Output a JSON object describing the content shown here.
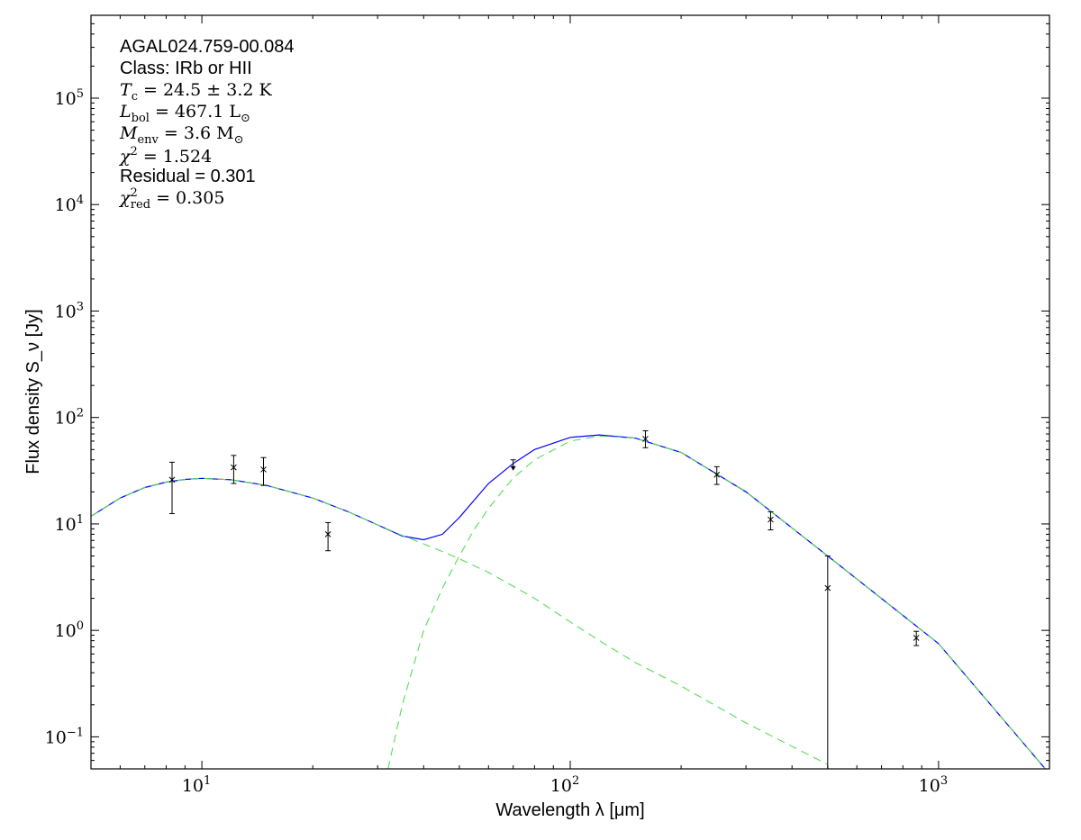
{
  "chart_data": {
    "type": "line",
    "title": "",
    "xlabel": "Wavelength λ [μm]",
    "ylabel": "Flux density S_ν [Jy]",
    "x_scale": "log",
    "y_scale": "log",
    "xlim": [
      5,
      2000
    ],
    "ylim": [
      0.05,
      600000
    ],
    "x_ticks": [
      {
        "value": 10,
        "base": "10",
        "exp": "1"
      },
      {
        "value": 100,
        "base": "10",
        "exp": "2"
      },
      {
        "value": 1000,
        "base": "10",
        "exp": "3"
      }
    ],
    "y_ticks": [
      {
        "value": 0.1,
        "base": "10",
        "exp": "−1"
      },
      {
        "value": 1,
        "base": "10",
        "exp": "0"
      },
      {
        "value": 10,
        "base": "10",
        "exp": "1"
      },
      {
        "value": 100,
        "base": "10",
        "exp": "2"
      },
      {
        "value": 1000,
        "base": "10",
        "exp": "3"
      },
      {
        "value": 10000,
        "base": "10",
        "exp": "4"
      },
      {
        "value": 100000,
        "base": "10",
        "exp": "5"
      }
    ],
    "grid": false,
    "annotations": {
      "source": "AGAL024.759-00.084",
      "class": "Class: IRb or HII",
      "tc": {
        "sym": "T",
        "sub": "c",
        "rest": " = 24.5 ± 3.2 K"
      },
      "lbol": {
        "sym": "L",
        "sub": "bol",
        "rest": " = 467.1 L",
        "sub2": "⊙"
      },
      "menv": {
        "sym": "M",
        "sub": "env",
        "rest": " = 3.6 M",
        "sub2": "⊙"
      },
      "chi2": {
        "sym": "χ",
        "sup": "2",
        "rest": " = 1.524"
      },
      "residual": "Residual = 0.301",
      "chi2red": {
        "sym": "χ",
        "sup": "2",
        "sub": "red",
        "rest": " = 0.305"
      }
    },
    "series": [
      {
        "kind": "total_model",
        "color": "#0000ff",
        "style": "solid",
        "x": [
          5,
          6,
          7,
          8,
          9,
          10,
          12,
          15,
          20,
          25,
          30,
          35,
          40,
          45,
          50,
          60,
          70,
          80,
          100,
          120,
          150,
          200,
          300,
          500,
          1000,
          2000
        ],
        "y": [
          11.8,
          17.5,
          22,
          24.7,
          26.2,
          26.8,
          26,
          23,
          17.5,
          13,
          9.8,
          7.7,
          7.1,
          8,
          11.5,
          24,
          37,
          50,
          65,
          68.5,
          64,
          47,
          20,
          5,
          0.75,
          0.045
        ]
      },
      {
        "kind": "warm_component",
        "color": "#55dd55",
        "style": "dashed",
        "x": [
          5,
          6,
          7,
          8,
          9,
          10,
          12,
          15,
          20,
          25,
          30,
          35,
          40,
          45,
          50,
          60,
          70,
          80,
          100,
          120,
          150,
          200,
          300,
          500
        ],
        "y": [
          11.8,
          17.5,
          22,
          24.7,
          26.2,
          26.8,
          26,
          23,
          17.5,
          13,
          9.8,
          7.8,
          6.5,
          5.5,
          4.7,
          3.5,
          2.6,
          2.0,
          1.2,
          0.8,
          0.5,
          0.3,
          0.135,
          0.055
        ]
      },
      {
        "kind": "cold_component",
        "color": "#55dd55",
        "style": "dashed",
        "x": [
          32,
          35,
          40,
          45,
          50,
          55,
          60,
          70,
          80,
          100,
          120,
          150,
          200,
          300,
          500,
          1000,
          2000
        ],
        "y": [
          0.05,
          0.2,
          1.0,
          2.5,
          5.0,
          9.0,
          14,
          27,
          40,
          60,
          67,
          64,
          47,
          20,
          5,
          0.75,
          0.045
        ]
      }
    ],
    "points": [
      {
        "x": 8.3,
        "y": 26,
        "lo": 12.5,
        "hi": 38
      },
      {
        "x": 12.2,
        "y": 34,
        "lo": 24,
        "hi": 44
      },
      {
        "x": 14.7,
        "y": 32.5,
        "lo": 23,
        "hi": 42
      },
      {
        "x": 22,
        "y": 8,
        "lo": 5.6,
        "hi": 10.3
      },
      {
        "x": 160,
        "y": 63,
        "lo": 52,
        "hi": 75
      },
      {
        "x": 250,
        "y": 29,
        "lo": 23.5,
        "hi": 34.5
      },
      {
        "x": 350,
        "y": 11,
        "lo": 8.8,
        "hi": 13
      },
      {
        "x": 500,
        "y": 2.5,
        "lo": 0.05,
        "hi": 5
      },
      {
        "x": 870,
        "y": 0.85,
        "lo": 0.72,
        "hi": 0.98
      }
    ],
    "upper_limits": [
      {
        "x": 70,
        "y": 40
      }
    ]
  }
}
